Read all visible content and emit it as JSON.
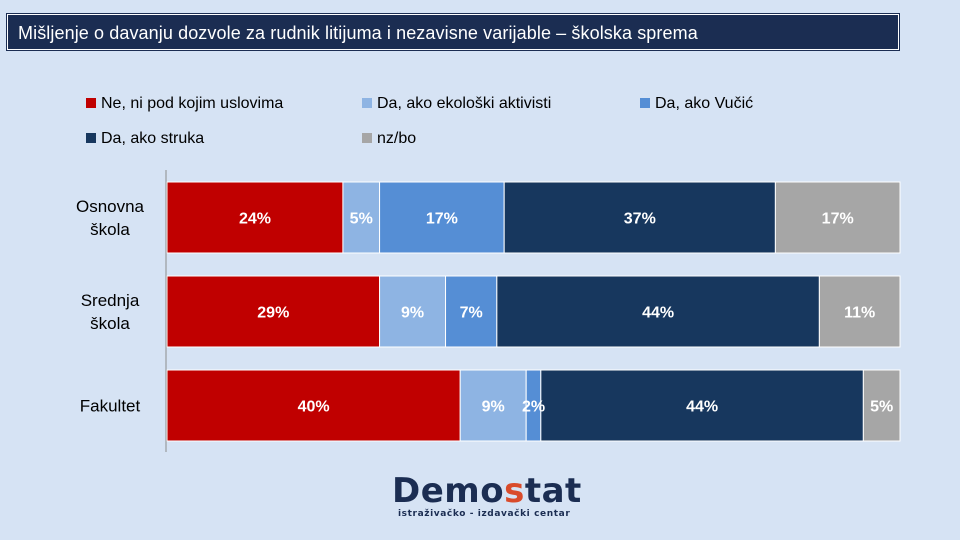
{
  "header": {
    "title": "Mišljenje o davanju dozvole za rudnik litijuma i nezavisne varijable – školska sprema"
  },
  "chart_data": {
    "type": "bar",
    "orientation": "horizontal",
    "stacked": true,
    "normalized": true,
    "legend_position": "top",
    "categories": [
      "Osnovna škola",
      "Srednja škola",
      "Fakultet"
    ],
    "category_label_lines": [
      [
        "Osnovna",
        "škola"
      ],
      [
        "Srednja",
        "škola"
      ],
      [
        "Fakultet"
      ]
    ],
    "series": [
      {
        "name": "Ne, ni pod kojim uslovima",
        "color": "#c00000",
        "values": [
          24,
          29,
          40
        ]
      },
      {
        "name": "Da, ako ekološki aktivisti",
        "color": "#8eb4e3",
        "values": [
          5,
          9,
          9
        ]
      },
      {
        "name": "Da, ako Vučić",
        "color": "#558ed5",
        "values": [
          17,
          7,
          2
        ]
      },
      {
        "name": "Da, ako struka",
        "color": "#17375e",
        "values": [
          37,
          44,
          44
        ]
      },
      {
        "name": "nz/bo",
        "color": "#a6a6a6",
        "values": [
          17,
          11,
          5
        ]
      }
    ],
    "value_suffix": "%"
  },
  "logo": {
    "word_main": "Demo",
    "word_accent": "s",
    "word_end": "tat",
    "tagline": "istraživačko - izdavački centar",
    "colors": {
      "main": "#1b2d52",
      "accent": "#d94b2b"
    }
  }
}
